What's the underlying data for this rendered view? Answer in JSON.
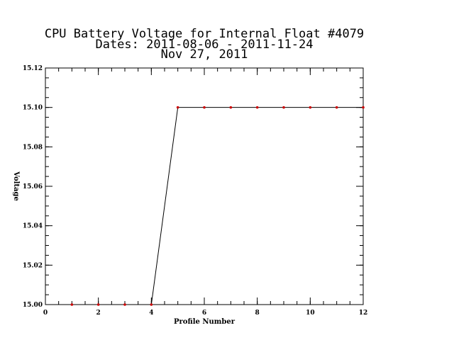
{
  "chart_data": {
    "type": "line",
    "title_lines": [
      "CPU Battery Voltage for Internal Float #4079",
      "Dates:  2011-08-06 -  2011-11-24",
      "Nov 27, 2011"
    ],
    "xlabel": "Profile Number",
    "ylabel": "Voltage",
    "xlim": [
      0,
      12
    ],
    "ylim": [
      15.0,
      15.12
    ],
    "x_ticks": [
      0,
      2,
      4,
      6,
      8,
      10,
      12
    ],
    "x_tick_labels": [
      "0",
      "2",
      "4",
      "6",
      "8",
      "10",
      "12"
    ],
    "y_ticks": [
      15.0,
      15.02,
      15.04,
      15.06,
      15.08,
      15.1,
      15.12
    ],
    "y_tick_labels": [
      "15.00",
      "15.02",
      "15.04",
      "15.06",
      "15.08",
      "15.10",
      "15.12"
    ],
    "x_minor_step": 0.5,
    "y_minor_step": 0.005,
    "grid": false,
    "series": [
      {
        "x": [
          1,
          2,
          3,
          4,
          5,
          6,
          7,
          8,
          9,
          10,
          11,
          12
        ],
        "values": [
          15.0,
          15.0,
          15.0,
          15.0,
          15.1,
          15.1,
          15.1,
          15.1,
          15.1,
          15.1,
          15.1,
          15.1
        ],
        "line_color": "#000000",
        "marker_color": "#cc0000"
      }
    ]
  }
}
